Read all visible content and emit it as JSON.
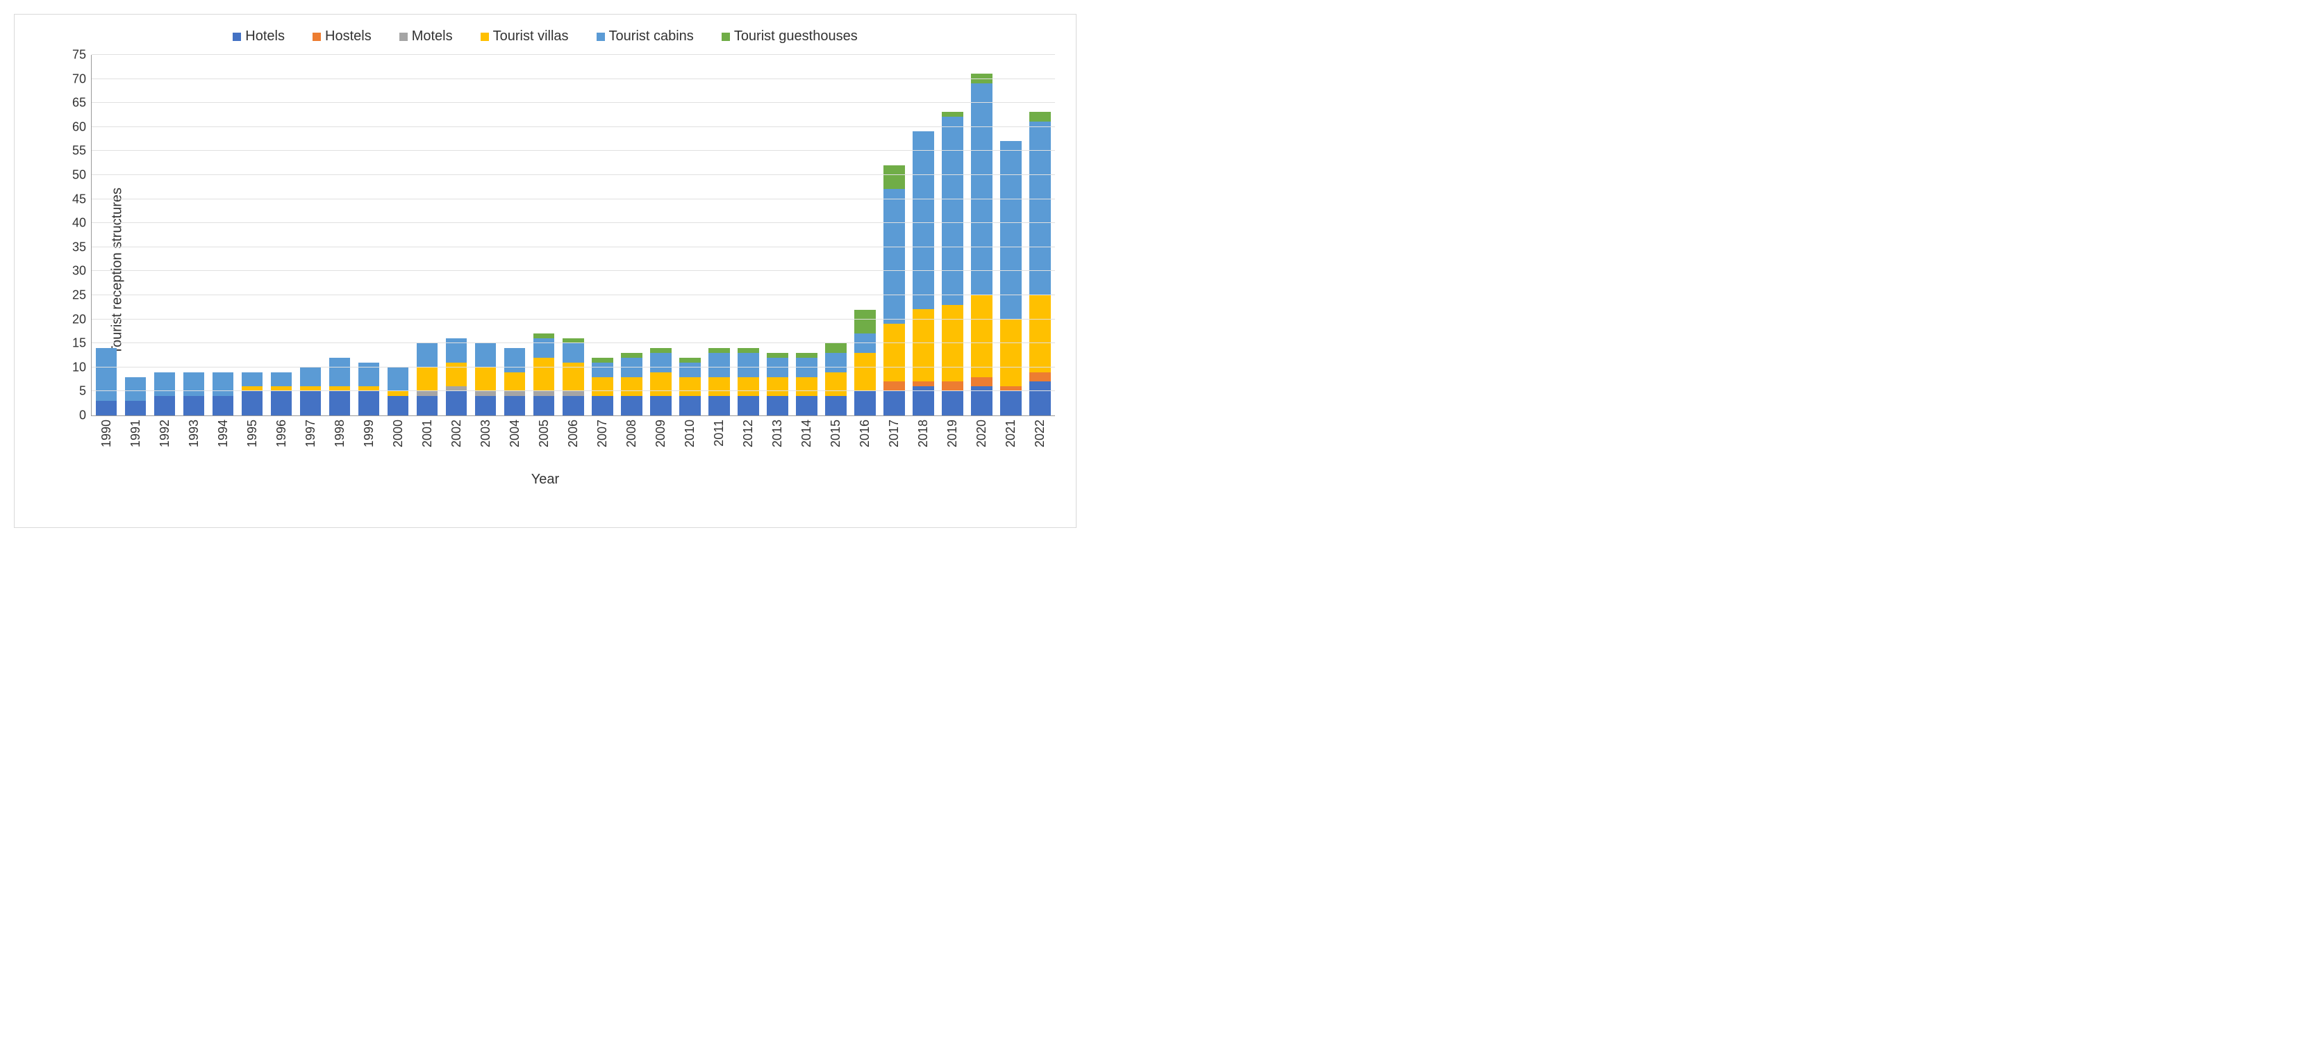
{
  "chart": {
    "type": "stacked-bar",
    "ylabel": "Tourist reception structures",
    "xlabel": "Year",
    "ylim": [
      0,
      75
    ],
    "ytick_step": 5,
    "yticks": [
      0,
      5,
      10,
      15,
      20,
      25,
      30,
      35,
      40,
      45,
      50,
      55,
      60,
      65,
      70,
      75
    ],
    "label_fontsize": 20,
    "tick_fontsize": 18,
    "background_color": "#ffffff",
    "border_color": "#d9d9d9",
    "grid_color": "#e0e0e0",
    "axis_color": "#999999",
    "bar_width_pct": 2.2,
    "legend_position": "top-center",
    "series": [
      {
        "name": "Hotels",
        "label": "Hotels",
        "color": "#4472c4"
      },
      {
        "name": "Hostels",
        "label": "Hostels",
        "color": "#ed7d31"
      },
      {
        "name": "Motels",
        "label": "Motels",
        "color": "#a5a5a5"
      },
      {
        "name": "Tourist villas",
        "label": "Tourist villas",
        "color": "#ffc000"
      },
      {
        "name": "Tourist cabins",
        "label": "Tourist cabins",
        "color": "#5b9bd5"
      },
      {
        "name": "Tourist guesthouses",
        "label": "Tourist guesthouses",
        "color": "#70ad47"
      }
    ],
    "categories": [
      "1990",
      "1991",
      "1992",
      "1993",
      "1994",
      "1995",
      "1996",
      "1997",
      "1998",
      "1999",
      "2000",
      "2001",
      "2002",
      "2003",
      "2004",
      "2005",
      "2006",
      "2007",
      "2008",
      "2009",
      "2010",
      "2011",
      "2012",
      "2013",
      "2014",
      "2015",
      "2016",
      "2017",
      "2018",
      "2019",
      "2020",
      "2021",
      "2022"
    ],
    "data": {
      "1990": {
        "Hotels": 3,
        "Hostels": 0,
        "Motels": 0,
        "Tourist villas": 0,
        "Tourist cabins": 11,
        "Tourist guesthouses": 0
      },
      "1991": {
        "Hotels": 3,
        "Hostels": 0,
        "Motels": 0,
        "Tourist villas": 0,
        "Tourist cabins": 5,
        "Tourist guesthouses": 0
      },
      "1992": {
        "Hotels": 4,
        "Hostels": 0,
        "Motels": 0,
        "Tourist villas": 0,
        "Tourist cabins": 5,
        "Tourist guesthouses": 0
      },
      "1993": {
        "Hotels": 4,
        "Hostels": 0,
        "Motels": 0,
        "Tourist villas": 0,
        "Tourist cabins": 5,
        "Tourist guesthouses": 0
      },
      "1994": {
        "Hotels": 4,
        "Hostels": 0,
        "Motels": 0,
        "Tourist villas": 0,
        "Tourist cabins": 5,
        "Tourist guesthouses": 0
      },
      "1995": {
        "Hotels": 5,
        "Hostels": 0,
        "Motels": 0,
        "Tourist villas": 1,
        "Tourist cabins": 3,
        "Tourist guesthouses": 0
      },
      "1996": {
        "Hotels": 5,
        "Hostels": 0,
        "Motels": 0,
        "Tourist villas": 1,
        "Tourist cabins": 3,
        "Tourist guesthouses": 0
      },
      "1997": {
        "Hotels": 5,
        "Hostels": 0,
        "Motels": 0,
        "Tourist villas": 1,
        "Tourist cabins": 4,
        "Tourist guesthouses": 0
      },
      "1998": {
        "Hotels": 5,
        "Hostels": 0,
        "Motels": 0,
        "Tourist villas": 1,
        "Tourist cabins": 6,
        "Tourist guesthouses": 0
      },
      "1999": {
        "Hotels": 5,
        "Hostels": 0,
        "Motels": 0,
        "Tourist villas": 1,
        "Tourist cabins": 5,
        "Tourist guesthouses": 0
      },
      "2000": {
        "Hotels": 4,
        "Hostels": 0,
        "Motels": 0,
        "Tourist villas": 1,
        "Tourist cabins": 5,
        "Tourist guesthouses": 0
      },
      "2001": {
        "Hotels": 4,
        "Hostels": 0,
        "Motels": 1,
        "Tourist villas": 5,
        "Tourist cabins": 5,
        "Tourist guesthouses": 0
      },
      "2002": {
        "Hotels": 5,
        "Hostels": 0,
        "Motels": 1,
        "Tourist villas": 5,
        "Tourist cabins": 5,
        "Tourist guesthouses": 0
      },
      "2003": {
        "Hotels": 4,
        "Hostels": 0,
        "Motels": 1,
        "Tourist villas": 5,
        "Tourist cabins": 5,
        "Tourist guesthouses": 0
      },
      "2004": {
        "Hotels": 4,
        "Hostels": 0,
        "Motels": 1,
        "Tourist villas": 4,
        "Tourist cabins": 5,
        "Tourist guesthouses": 0
      },
      "2005": {
        "Hotels": 4,
        "Hostels": 0,
        "Motels": 1,
        "Tourist villas": 7,
        "Tourist cabins": 4,
        "Tourist guesthouses": 1
      },
      "2006": {
        "Hotels": 4,
        "Hostels": 0,
        "Motels": 1,
        "Tourist villas": 6,
        "Tourist cabins": 4,
        "Tourist guesthouses": 1
      },
      "2007": {
        "Hotels": 4,
        "Hostels": 0,
        "Motels": 0,
        "Tourist villas": 4,
        "Tourist cabins": 3,
        "Tourist guesthouses": 1
      },
      "2008": {
        "Hotels": 4,
        "Hostels": 0,
        "Motels": 0,
        "Tourist villas": 4,
        "Tourist cabins": 4,
        "Tourist guesthouses": 1
      },
      "2009": {
        "Hotels": 4,
        "Hostels": 0,
        "Motels": 0,
        "Tourist villas": 5,
        "Tourist cabins": 4,
        "Tourist guesthouses": 1
      },
      "2010": {
        "Hotels": 4,
        "Hostels": 0,
        "Motels": 0,
        "Tourist villas": 4,
        "Tourist cabins": 3,
        "Tourist guesthouses": 1
      },
      "2011": {
        "Hotels": 4,
        "Hostels": 0,
        "Motels": 0,
        "Tourist villas": 4,
        "Tourist cabins": 5,
        "Tourist guesthouses": 1
      },
      "2012": {
        "Hotels": 4,
        "Hostels": 0,
        "Motels": 0,
        "Tourist villas": 4,
        "Tourist cabins": 5,
        "Tourist guesthouses": 1
      },
      "2013": {
        "Hotels": 4,
        "Hostels": 0,
        "Motels": 0,
        "Tourist villas": 4,
        "Tourist cabins": 4,
        "Tourist guesthouses": 1
      },
      "2014": {
        "Hotels": 4,
        "Hostels": 0,
        "Motels": 0,
        "Tourist villas": 4,
        "Tourist cabins": 4,
        "Tourist guesthouses": 1
      },
      "2015": {
        "Hotels": 4,
        "Hostels": 0,
        "Motels": 0,
        "Tourist villas": 5,
        "Tourist cabins": 4,
        "Tourist guesthouses": 2
      },
      "2016": {
        "Hotels": 5,
        "Hostels": 0,
        "Motels": 0,
        "Tourist villas": 8,
        "Tourist cabins": 4,
        "Tourist guesthouses": 5
      },
      "2017": {
        "Hotels": 5,
        "Hostels": 2,
        "Motels": 0,
        "Tourist villas": 12,
        "Tourist cabins": 28,
        "Tourist guesthouses": 5
      },
      "2018": {
        "Hotels": 6,
        "Hostels": 1,
        "Motels": 0,
        "Tourist villas": 15,
        "Tourist cabins": 37,
        "Tourist guesthouses": 0
      },
      "2019": {
        "Hotels": 5,
        "Hostels": 2,
        "Motels": 0,
        "Tourist villas": 16,
        "Tourist cabins": 39,
        "Tourist guesthouses": 1
      },
      "2020": {
        "Hotels": 6,
        "Hostels": 2,
        "Motels": 0,
        "Tourist villas": 17,
        "Tourist cabins": 44,
        "Tourist guesthouses": 2
      },
      "2021": {
        "Hotels": 5,
        "Hostels": 1,
        "Motels": 0,
        "Tourist villas": 14,
        "Tourist cabins": 37,
        "Tourist guesthouses": 0
      },
      "2022": {
        "Hotels": 7,
        "Hostels": 2,
        "Motels": 0,
        "Tourist villas": 16,
        "Tourist cabins": 36,
        "Tourist guesthouses": 2
      }
    }
  }
}
